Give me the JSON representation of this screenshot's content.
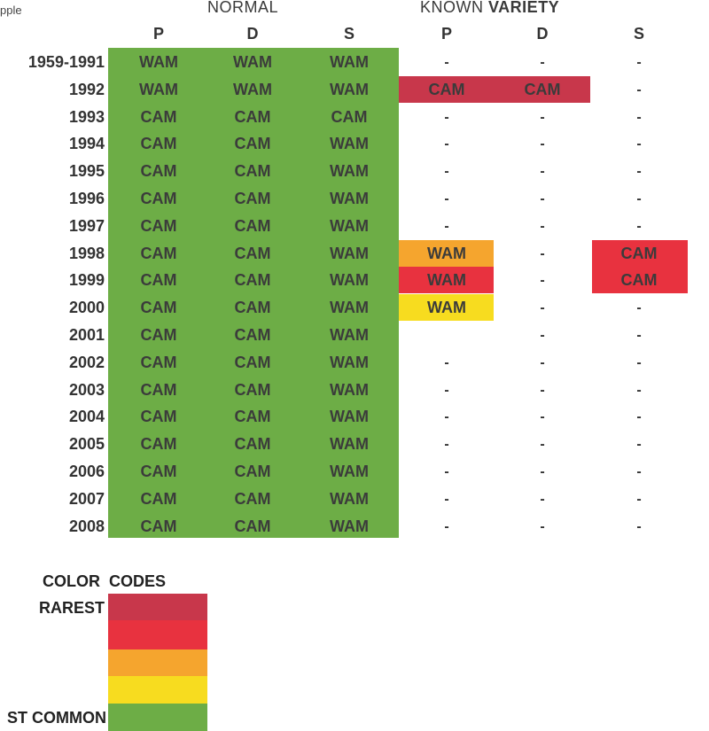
{
  "corner_label": "pple",
  "headers": {
    "normal": "NORMAL",
    "known": "KNOWN",
    "variety": "VARIETY",
    "columns": [
      "P",
      "D",
      "S",
      "P",
      "D",
      "S"
    ]
  },
  "table": {
    "rows": [
      {
        "year": "1959-1991",
        "normal": [
          "WAM",
          "WAM",
          "WAM"
        ],
        "known": [
          "-",
          "-",
          "-"
        ]
      },
      {
        "year": "1992",
        "normal": [
          "WAM",
          "WAM",
          "WAM"
        ],
        "known": [
          "CAM",
          "CAM",
          "-"
        ]
      },
      {
        "year": "1993",
        "normal": [
          "CAM",
          "CAM",
          "CAM"
        ],
        "known": [
          "-",
          "-",
          "-"
        ]
      },
      {
        "year": "1994",
        "normal": [
          "CAM",
          "CAM",
          "WAM"
        ],
        "known": [
          "-",
          "-",
          "-"
        ]
      },
      {
        "year": "1995",
        "normal": [
          "CAM",
          "CAM",
          "WAM"
        ],
        "known": [
          "-",
          "-",
          "-"
        ]
      },
      {
        "year": "1996",
        "normal": [
          "CAM",
          "CAM",
          "WAM"
        ],
        "known": [
          "-",
          "-",
          "-"
        ]
      },
      {
        "year": "1997",
        "normal": [
          "CAM",
          "CAM",
          "WAM"
        ],
        "known": [
          "-",
          "-",
          "-"
        ]
      },
      {
        "year": "1998",
        "normal": [
          "CAM",
          "CAM",
          "WAM"
        ],
        "known": [
          "WAM",
          "-",
          "CAM"
        ]
      },
      {
        "year": "1999",
        "normal": [
          "CAM",
          "CAM",
          "WAM"
        ],
        "known": [
          "WAM",
          "-",
          "CAM"
        ]
      },
      {
        "year": "2000",
        "normal": [
          "CAM",
          "CAM",
          "WAM"
        ],
        "known": [
          "WAM",
          "-",
          "-"
        ]
      },
      {
        "year": "2001",
        "normal": [
          "CAM",
          "CAM",
          "WAM"
        ],
        "known": [
          "",
          "-",
          "-"
        ]
      },
      {
        "year": "2002",
        "normal": [
          "CAM",
          "CAM",
          "WAM"
        ],
        "known": [
          "-",
          "-",
          "-"
        ]
      },
      {
        "year": "2003",
        "normal": [
          "CAM",
          "CAM",
          "WAM"
        ],
        "known": [
          "-",
          "-",
          "-"
        ]
      },
      {
        "year": "2004",
        "normal": [
          "CAM",
          "CAM",
          "WAM"
        ],
        "known": [
          "-",
          "-",
          "-"
        ]
      },
      {
        "year": "2005",
        "normal": [
          "CAM",
          "CAM",
          "WAM"
        ],
        "known": [
          "-",
          "-",
          "-"
        ]
      },
      {
        "year": "2006",
        "normal": [
          "CAM",
          "CAM",
          "WAM"
        ],
        "known": [
          "-",
          "-",
          "-"
        ]
      },
      {
        "year": "2007",
        "normal": [
          "CAM",
          "CAM",
          "WAM"
        ],
        "known": [
          "-",
          "-",
          "-"
        ]
      },
      {
        "year": "2008",
        "normal": [
          "CAM",
          "CAM",
          "WAM"
        ],
        "known": [
          "-",
          "-",
          "-"
        ]
      }
    ]
  },
  "colors": {
    "dark_red": "#c8374b",
    "red": "#e8323f",
    "orange": "#f5a52e",
    "yellow": "#f7dc1f",
    "green": "#6dad46"
  },
  "legend": {
    "title_1": "COLOR",
    "title_2": "CODES",
    "rarest": "RAREST",
    "most_common": "ST COMMON"
  }
}
